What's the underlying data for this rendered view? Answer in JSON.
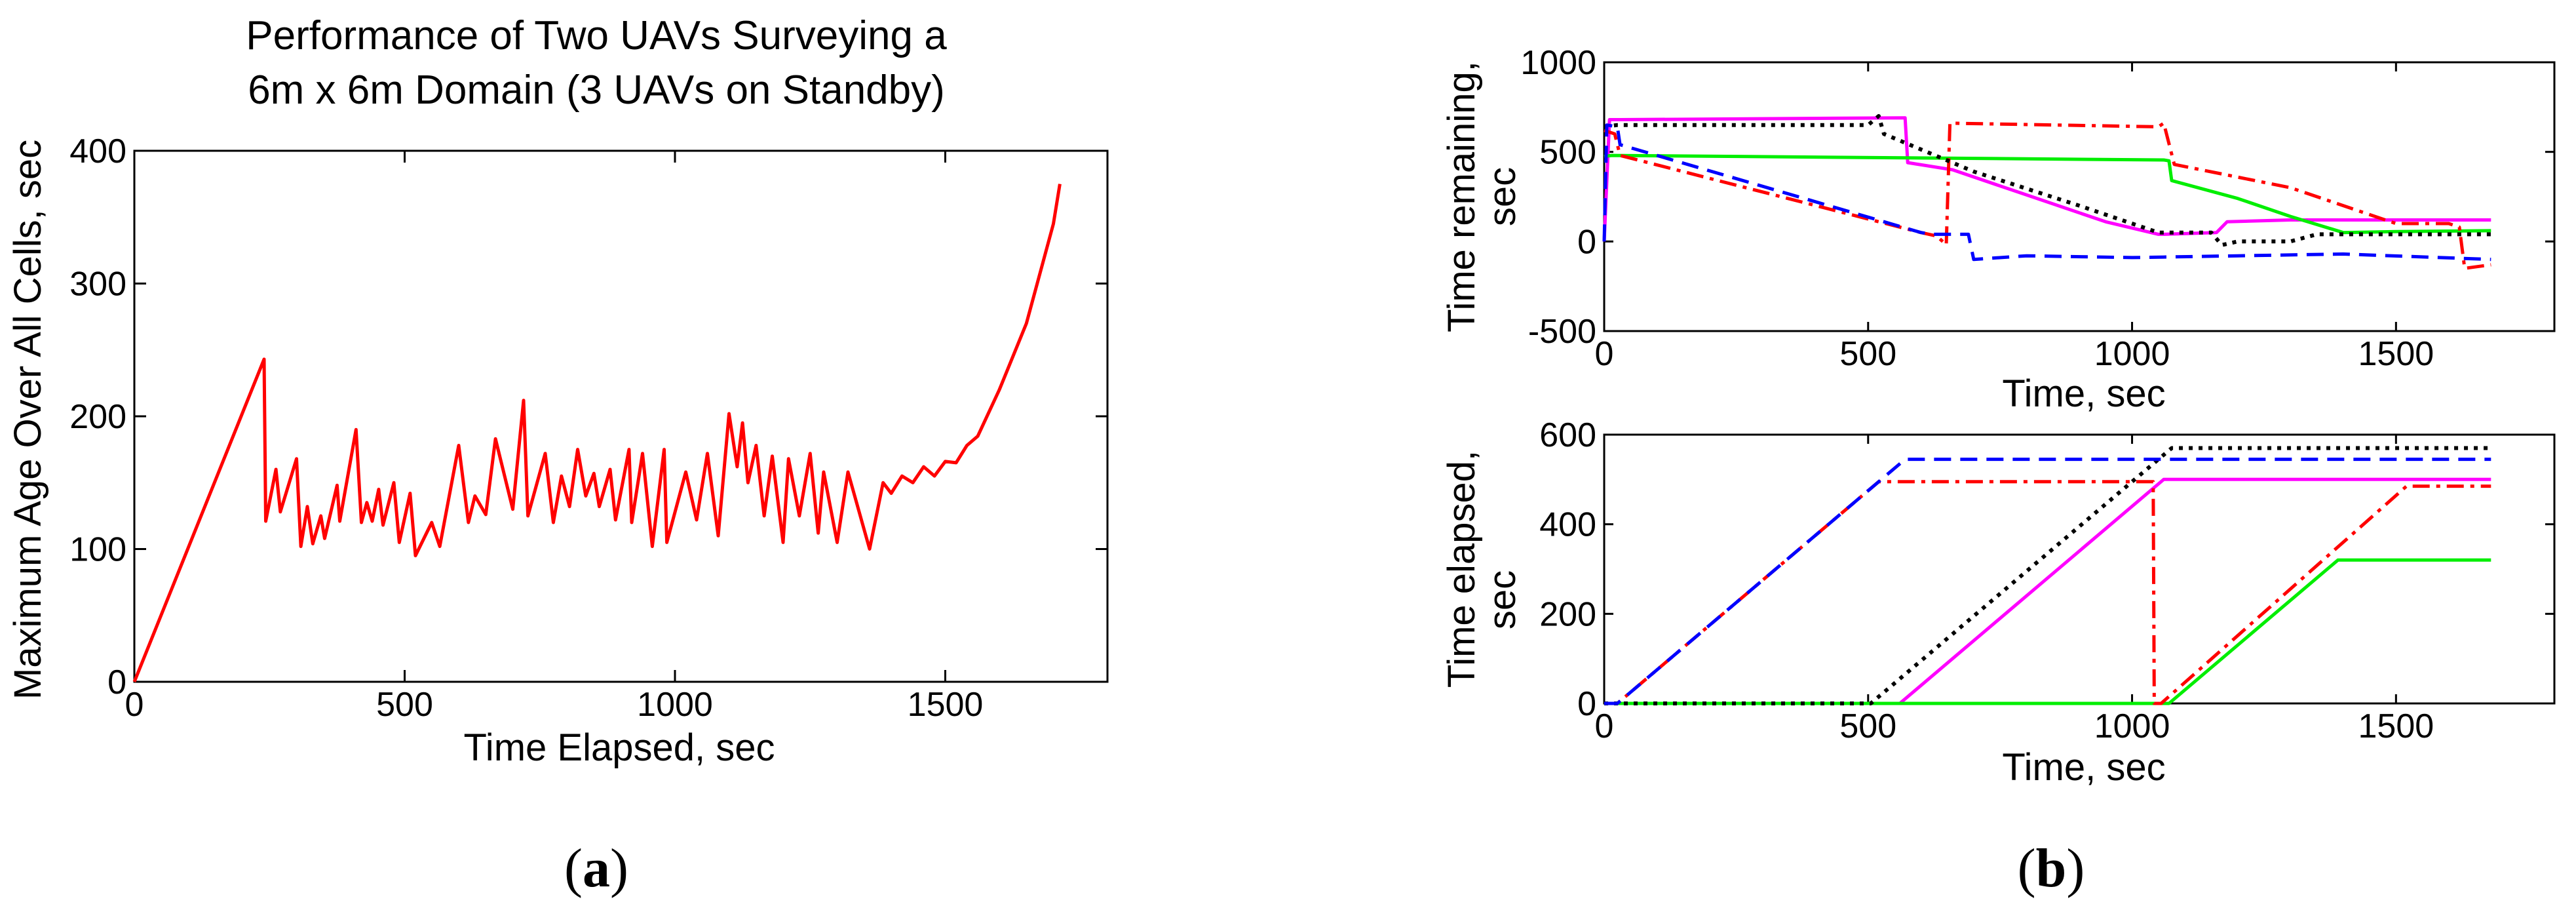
{
  "figure": {
    "panel_a_label": "a",
    "panel_b_label": "b"
  },
  "chart_data": [
    {
      "type": "line",
      "title": "Performance of Two UAVs Surveying a",
      "subtitle": "6m x 6m Domain (3 UAVs on Standby)",
      "xlabel": "Time Elapsed, sec",
      "ylabel": "Maximum Age Over All Cells, sec",
      "xlim": [
        0,
        1800
      ],
      "ylim": [
        0,
        400
      ],
      "xticks": [
        0,
        500,
        1000,
        1500
      ],
      "yticks": [
        0,
        100,
        200,
        300,
        400
      ],
      "grid": false,
      "series": [
        {
          "color": "#ff0000",
          "x": [
            0,
            240,
            243,
            262,
            270,
            300,
            308,
            320,
            330,
            345,
            352,
            375,
            380,
            410,
            420,
            430,
            440,
            452,
            460,
            480,
            490,
            510,
            520,
            550,
            565,
            600,
            618,
            630,
            650,
            668,
            700,
            720,
            728,
            760,
            775,
            790,
            805,
            820,
            835,
            850,
            860,
            880,
            890,
            915,
            920,
            940,
            958,
            980,
            985,
            1020,
            1040,
            1060,
            1080,
            1100,
            1115,
            1125,
            1135,
            1150,
            1165,
            1180,
            1200,
            1210,
            1230,
            1250,
            1265,
            1275,
            1300,
            1320,
            1360,
            1385,
            1400,
            1420,
            1440,
            1460,
            1480,
            1500,
            1520,
            1540,
            1560,
            1600,
            1650,
            1700,
            1712
          ],
          "y": [
            0,
            243,
            121,
            160,
            128,
            168,
            102,
            132,
            104,
            125,
            108,
            148,
            121,
            190,
            120,
            135,
            121,
            145,
            118,
            150,
            105,
            142,
            95,
            120,
            102,
            178,
            120,
            140,
            126,
            183,
            130,
            212,
            125,
            172,
            120,
            155,
            132,
            175,
            140,
            157,
            132,
            160,
            122,
            175,
            120,
            172,
            102,
            175,
            105,
            158,
            122,
            172,
            110,
            202,
            162,
            195,
            150,
            178,
            125,
            170,
            105,
            168,
            125,
            172,
            112,
            158,
            105,
            158,
            100,
            150,
            142,
            155,
            150,
            162,
            155,
            166,
            165,
            178,
            185,
            220,
            270,
            345,
            375
          ]
        }
      ]
    },
    {
      "type": "line",
      "title": "",
      "xlabel": "Time, sec",
      "ylabel_line1": "Time remaining,",
      "ylabel_line2": "sec",
      "xlim": [
        0,
        1800
      ],
      "ylim": [
        -500,
        1000
      ],
      "xticks": [
        0,
        500,
        1000,
        1500
      ],
      "yticks": [
        -500,
        0,
        500,
        1000
      ],
      "grid": false,
      "series": [
        {
          "color": "#ff00ff",
          "style": "solid",
          "x": [
            0,
            10,
            30,
            570,
            575,
            660,
            800,
            950,
            1050,
            1060,
            1160,
            1180,
            1300,
            1450,
            1550,
            1680
          ],
          "y": [
            0,
            680,
            680,
            690,
            440,
            400,
            260,
            110,
            40,
            40,
            50,
            110,
            120,
            120,
            120,
            120
          ]
        },
        {
          "color": "#00ee00",
          "style": "solid",
          "x": [
            0,
            15,
            1060,
            1070,
            1075,
            1200,
            1300,
            1400,
            1500,
            1680
          ],
          "y": [
            475,
            480,
            455,
            450,
            340,
            240,
            140,
            50,
            55,
            60
          ]
        },
        {
          "color": "#ff0000",
          "style": "dashdot",
          "x": [
            0,
            20,
            30,
            600,
            630,
            645,
            648,
            655,
            1050,
            1060,
            1080,
            1300,
            1500,
            1600,
            1620,
            1630,
            1680
          ],
          "y": [
            620,
            600,
            480,
            50,
            30,
            -10,
            -20,
            660,
            640,
            660,
            430,
            300,
            100,
            100,
            80,
            -150,
            -130
          ]
        },
        {
          "color": "#000000",
          "style": "dotted",
          "x": [
            0,
            25,
            500,
            520,
            530,
            700,
            900,
            1050,
            1100,
            1150,
            1170,
            1200,
            1300,
            1350,
            1500,
            1680
          ],
          "y": [
            640,
            650,
            650,
            700,
            600,
            390,
            200,
            50,
            50,
            50,
            -20,
            0,
            0,
            40,
            40,
            40
          ]
        },
        {
          "color": "#0000ff",
          "style": "dashed",
          "x": [
            0,
            5,
            25,
            30,
            600,
            620,
            690,
            700,
            800,
            1000,
            1200,
            1400,
            1680
          ],
          "y": [
            0,
            650,
            640,
            540,
            50,
            40,
            40,
            -100,
            -80,
            -90,
            -80,
            -70,
            -100
          ]
        }
      ]
    },
    {
      "type": "line",
      "title": "",
      "xlabel": "Time, sec",
      "ylabel_line1": "Time elapsed,",
      "ylabel_line2": "sec",
      "xlim": [
        0,
        1800
      ],
      "ylim": [
        0,
        600
      ],
      "xticks": [
        0,
        500,
        1000,
        1500
      ],
      "yticks": [
        0,
        200,
        400,
        600
      ],
      "grid": false,
      "series": [
        {
          "color": "#ff00ff",
          "style": "solid",
          "x": [
            0,
            560,
            1060,
            1680
          ],
          "y": [
            0,
            0,
            500,
            500
          ]
        },
        {
          "color": "#00ee00",
          "style": "solid",
          "x": [
            0,
            1070,
            1390,
            1680
          ],
          "y": [
            0,
            0,
            320,
            320
          ]
        },
        {
          "color": "#ff0000",
          "style": "dashdot",
          "x": [
            0,
            25,
            520,
            1040,
            1042,
            1055,
            1520,
            1680
          ],
          "y": [
            0,
            0,
            495,
            495,
            0,
            0,
            485,
            485
          ]
        },
        {
          "color": "#000000",
          "style": "dotted",
          "x": [
            0,
            505,
            1075,
            1680
          ],
          "y": [
            0,
            0,
            570,
            570
          ]
        },
        {
          "color": "#0000ff",
          "style": "dashed",
          "x": [
            0,
            25,
            570,
            1680
          ],
          "y": [
            0,
            0,
            545,
            545
          ]
        }
      ]
    }
  ]
}
